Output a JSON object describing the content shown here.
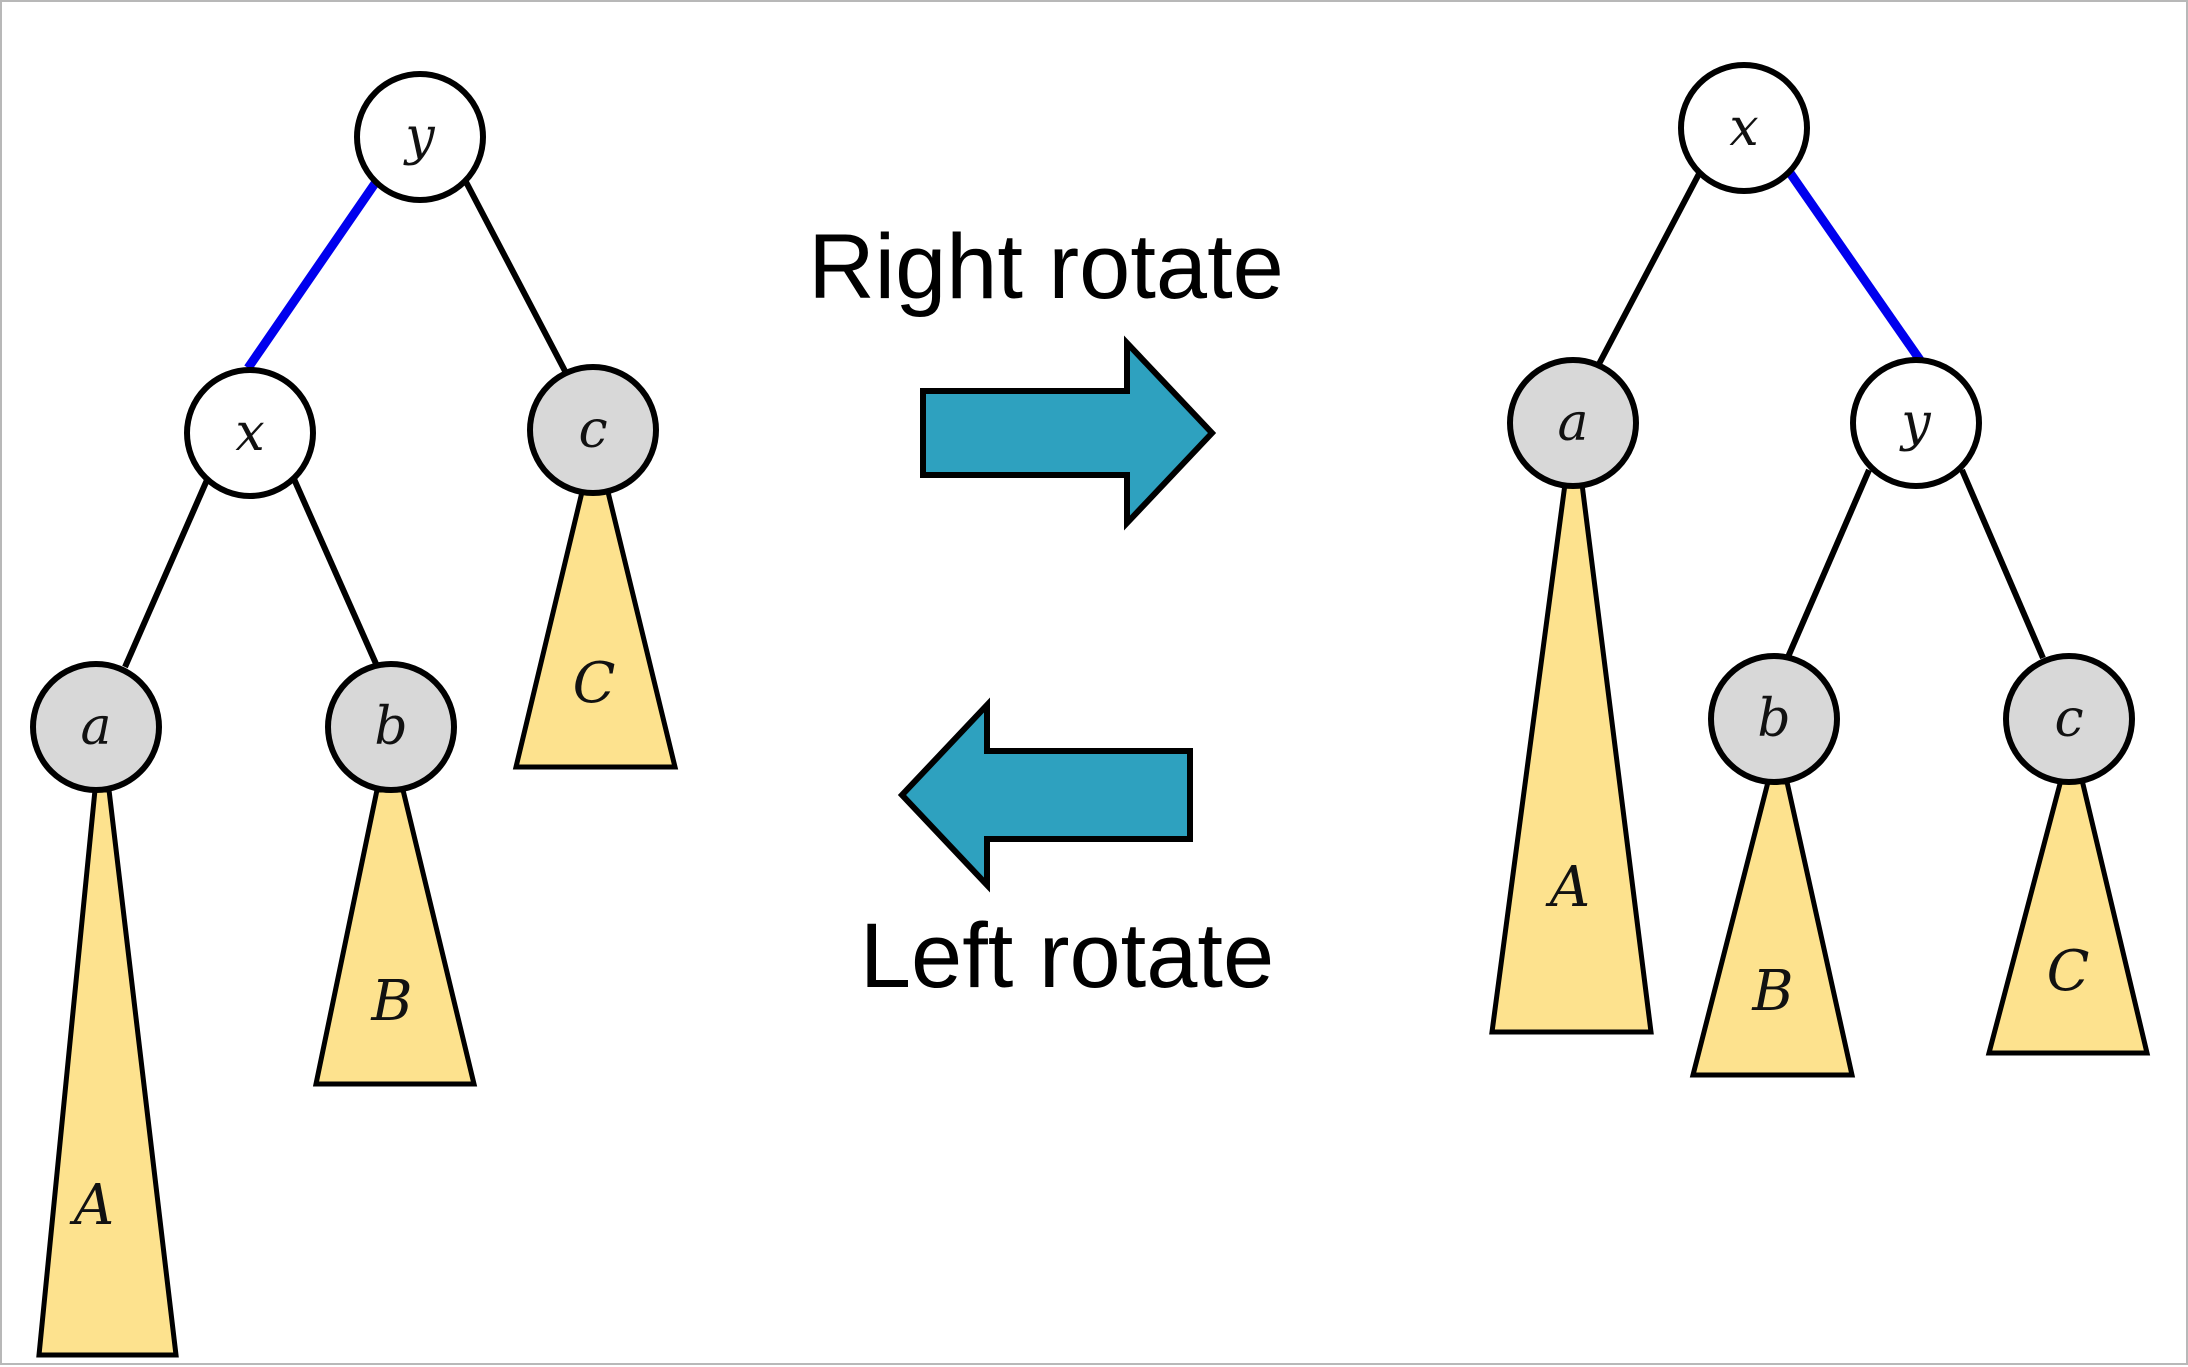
{
  "colors": {
    "background": "#ffffff",
    "outline": "#000000",
    "rotated_edge": "#0000ee",
    "leaf_node_fill": "#d8d8d8",
    "inner_node_fill": "#ffffff",
    "subtree_fill": "#fde28e",
    "arrow_fill": "#2ea1bf"
  },
  "captions": {
    "right_rotate": "Right rotate",
    "left_rotate": "Left rotate"
  },
  "left_tree": {
    "nodes": {
      "root": "y",
      "inner": "x",
      "leaf_a": "a",
      "leaf_b": "b",
      "leaf_c": "c"
    },
    "subtrees": {
      "A": "A",
      "B": "B",
      "C": "C"
    }
  },
  "right_tree": {
    "nodes": {
      "root": "x",
      "inner": "y",
      "leaf_a": "a",
      "leaf_b": "b",
      "leaf_c": "c"
    },
    "subtrees": {
      "A": "A",
      "B": "B",
      "C": "C"
    }
  },
  "arrows": {
    "right_arrow_icon": "right-arrow-icon",
    "left_arrow_icon": "left-arrow-icon"
  }
}
